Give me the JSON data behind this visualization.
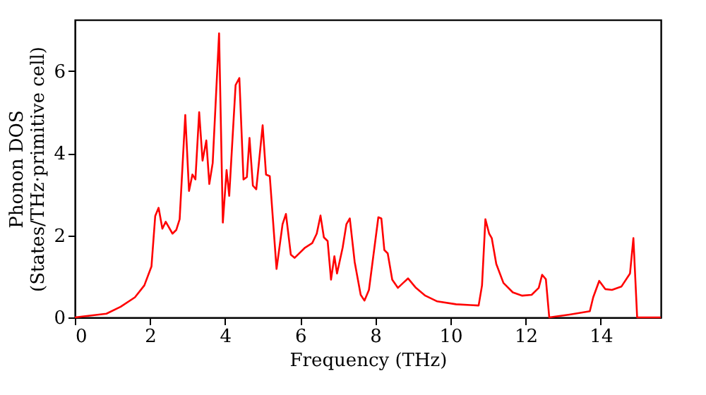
{
  "chart_data": {
    "type": "line",
    "xlabel": "Frequency (THz)",
    "ylabel": "Phonon DOS\n(States/THz·primitive cell)",
    "xlim": [
      0,
      15.6
    ],
    "ylim": [
      0,
      7.25
    ],
    "xticks": [
      0,
      2,
      4,
      6,
      8,
      10,
      12,
      14
    ],
    "yticks": [
      0,
      2,
      4,
      6
    ],
    "grid": false,
    "line_style": "solid",
    "marker": "none",
    "series": [
      {
        "color": "#ff0000",
        "x": [
          0,
          0.84,
          1.22,
          1.6,
          1.85,
          2.04,
          2.14,
          2.23,
          2.33,
          2.42,
          2.6,
          2.7,
          2.79,
          2.94,
          3.04,
          3.13,
          3.21,
          3.31,
          3.4,
          3.5,
          3.58,
          3.67,
          3.84,
          3.94,
          4.04,
          4.11,
          4.28,
          4.38,
          4.49,
          4.58,
          4.65,
          4.74,
          4.83,
          5.0,
          5.09,
          5.19,
          5.37,
          5.53,
          5.62,
          5.75,
          5.85,
          6.13,
          6.32,
          6.44,
          6.54,
          6.63,
          6.73,
          6.82,
          6.91,
          6.98,
          7.13,
          7.23,
          7.32,
          7.45,
          7.61,
          7.71,
          7.83,
          8.08,
          8.16,
          8.24,
          8.33,
          8.45,
          8.6,
          8.74,
          8.87,
          9.08,
          9.33,
          9.65,
          10.15,
          10.53,
          10.75,
          10.84,
          10.93,
          11.03,
          11.1,
          11.22,
          11.41,
          11.66,
          11.91,
          12.16,
          12.35,
          12.44,
          12.54,
          12.63,
          13.17,
          13.71,
          13.8,
          13.96,
          14.12,
          14.3,
          14.55,
          14.78,
          14.87,
          14.97,
          15.6
        ],
        "values": [
          0,
          0.09,
          0.26,
          0.49,
          0.78,
          1.24,
          2.47,
          2.67,
          2.16,
          2.33,
          2.04,
          2.13,
          2.39,
          4.93,
          3.08,
          3.48,
          3.36,
          5.0,
          3.82,
          4.31,
          3.25,
          3.76,
          6.92,
          2.31,
          3.59,
          2.96,
          5.66,
          5.83,
          3.36,
          3.42,
          4.37,
          3.21,
          3.12,
          4.68,
          3.48,
          3.44,
          1.18,
          2.27,
          2.52,
          1.53,
          1.45,
          1.7,
          1.81,
          2.04,
          2.48,
          1.95,
          1.86,
          0.92,
          1.49,
          1.07,
          1.7,
          2.27,
          2.41,
          1.35,
          0.55,
          0.41,
          0.67,
          2.44,
          2.41,
          1.64,
          1.56,
          0.92,
          0.72,
          0.84,
          0.95,
          0.72,
          0.53,
          0.39,
          0.32,
          0.3,
          0.29,
          0.78,
          2.39,
          2.04,
          1.93,
          1.3,
          0.84,
          0.61,
          0.53,
          0.55,
          0.72,
          1.04,
          0.93,
          0,
          0.07,
          0.15,
          0.49,
          0.89,
          0.69,
          0.67,
          0.75,
          1.07,
          1.93,
          0,
          0
        ]
      }
    ]
  }
}
